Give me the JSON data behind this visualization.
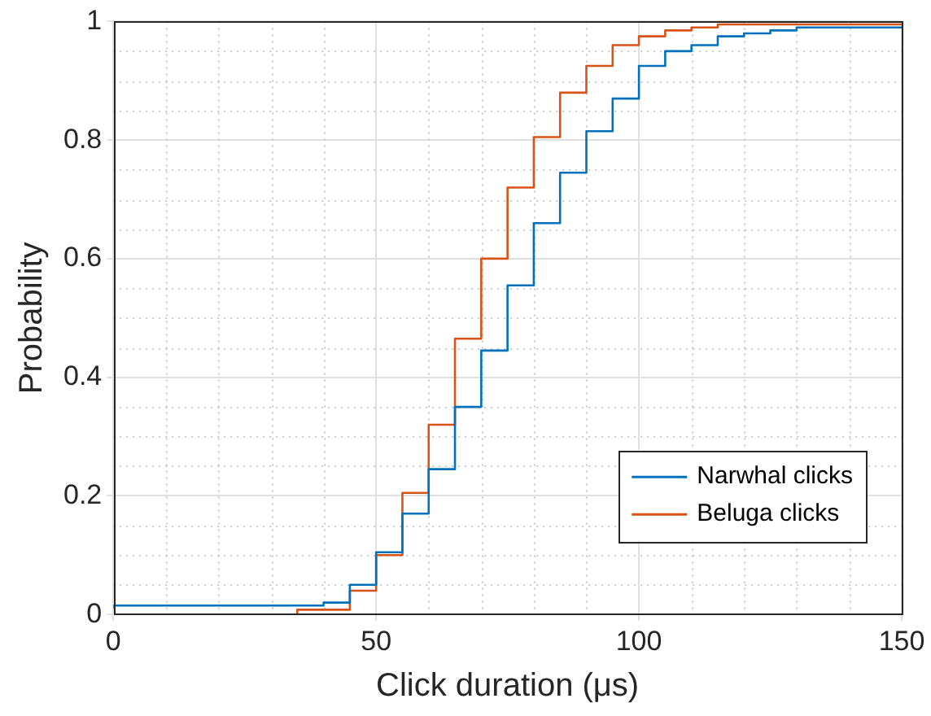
{
  "chart_data": {
    "type": "step",
    "xlabel": "Click duration (μs)",
    "ylabel": "Probability",
    "xlim": [
      0,
      150
    ],
    "xticks": [
      0,
      50,
      100,
      150
    ],
    "ylim": [
      0,
      1
    ],
    "yticks": [
      0,
      0.2,
      0.4,
      0.6,
      0.8,
      1
    ],
    "grid": true,
    "legend": "bottom right",
    "line_style": "solid",
    "marker": "none",
    "series": [
      {
        "name": "Narwhal clicks",
        "color": "#0072bd",
        "x": [
          0,
          40,
          45,
          50,
          55,
          60,
          65,
          70,
          75,
          80,
          85,
          90,
          95,
          100,
          105,
          110,
          115,
          120,
          125,
          130,
          140,
          150
        ],
        "values": [
          0.01,
          0.015,
          0.02,
          0.05,
          0.105,
          0.17,
          0.245,
          0.35,
          0.445,
          0.555,
          0.66,
          0.745,
          0.815,
          0.87,
          0.925,
          0.95,
          0.96,
          0.975,
          0.98,
          0.985,
          0.99,
          0.99
        ]
      },
      {
        "name": "Beluga clicks",
        "color": "#d95319",
        "x": [
          35,
          45,
          50,
          55,
          60,
          65,
          70,
          75,
          80,
          85,
          90,
          95,
          100,
          105,
          110,
          115,
          125,
          150
        ],
        "values": [
          0,
          0.008,
          0.04,
          0.1,
          0.205,
          0.32,
          0.465,
          0.6,
          0.72,
          0.805,
          0.88,
          0.925,
          0.96,
          0.975,
          0.985,
          0.99,
          0.995,
          0.995
        ]
      }
    ]
  }
}
